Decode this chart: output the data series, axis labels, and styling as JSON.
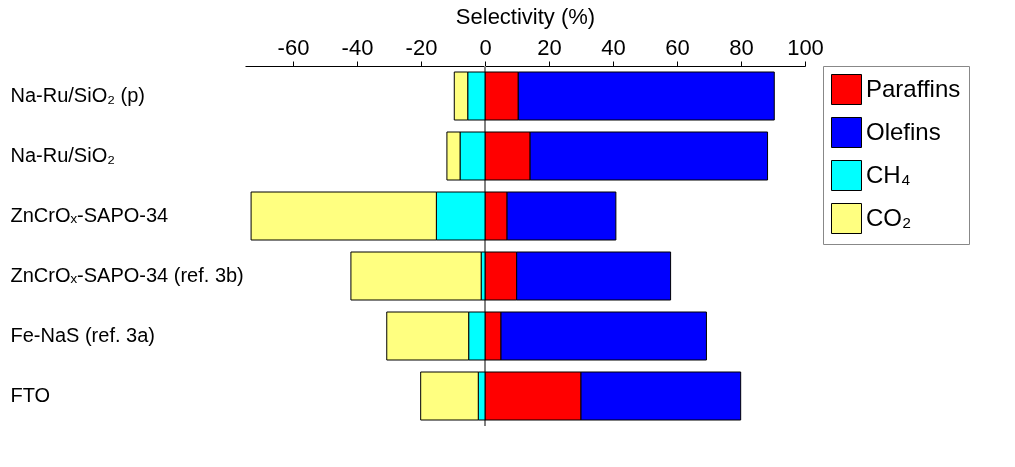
{
  "chart_data": {
    "type": "bar",
    "orientation": "horizontal",
    "stacked": true,
    "xlabel": "Selectivity (%)",
    "categories": [
      "Na-Ru/SiO₂ (p)",
      "Na-Ru/SiO₂",
      "ZnCrOₓ-SAPO-34",
      "ZnCrOₓ-SAPO-34 (ref. 3b)",
      "Fe-NaS (ref. 3a)",
      "FTO"
    ],
    "series": [
      {
        "name": "Paraffins",
        "color": "#ff0000",
        "values": [
          10.4,
          14.1,
          6.9,
          9.9,
          5.0,
          30.0
        ]
      },
      {
        "name": "Olefins",
        "color": "#0000ff",
        "values": [
          80.0,
          74.2,
          34.0,
          48.1,
          64.2,
          49.9
        ]
      },
      {
        "name": "CH₄",
        "color": "#00ffff",
        "values": [
          -5.4,
          -7.8,
          -15.2,
          -1.2,
          -5.1,
          -2.1
        ]
      },
      {
        "name": "CO₂",
        "color": "#ffff80",
        "values": [
          -4.2,
          -4.1,
          -57.9,
          -40.7,
          -25.6,
          -18.0
        ]
      }
    ],
    "xlim": [
      -75,
      100
    ],
    "xticks": [
      -60,
      -40,
      -20,
      0,
      20,
      40,
      60,
      80,
      100
    ],
    "ref_lines": [
      {
        "axis": "x",
        "value": 0,
        "color": "#808080"
      }
    ],
    "legend": "right",
    "grid": false
  }
}
